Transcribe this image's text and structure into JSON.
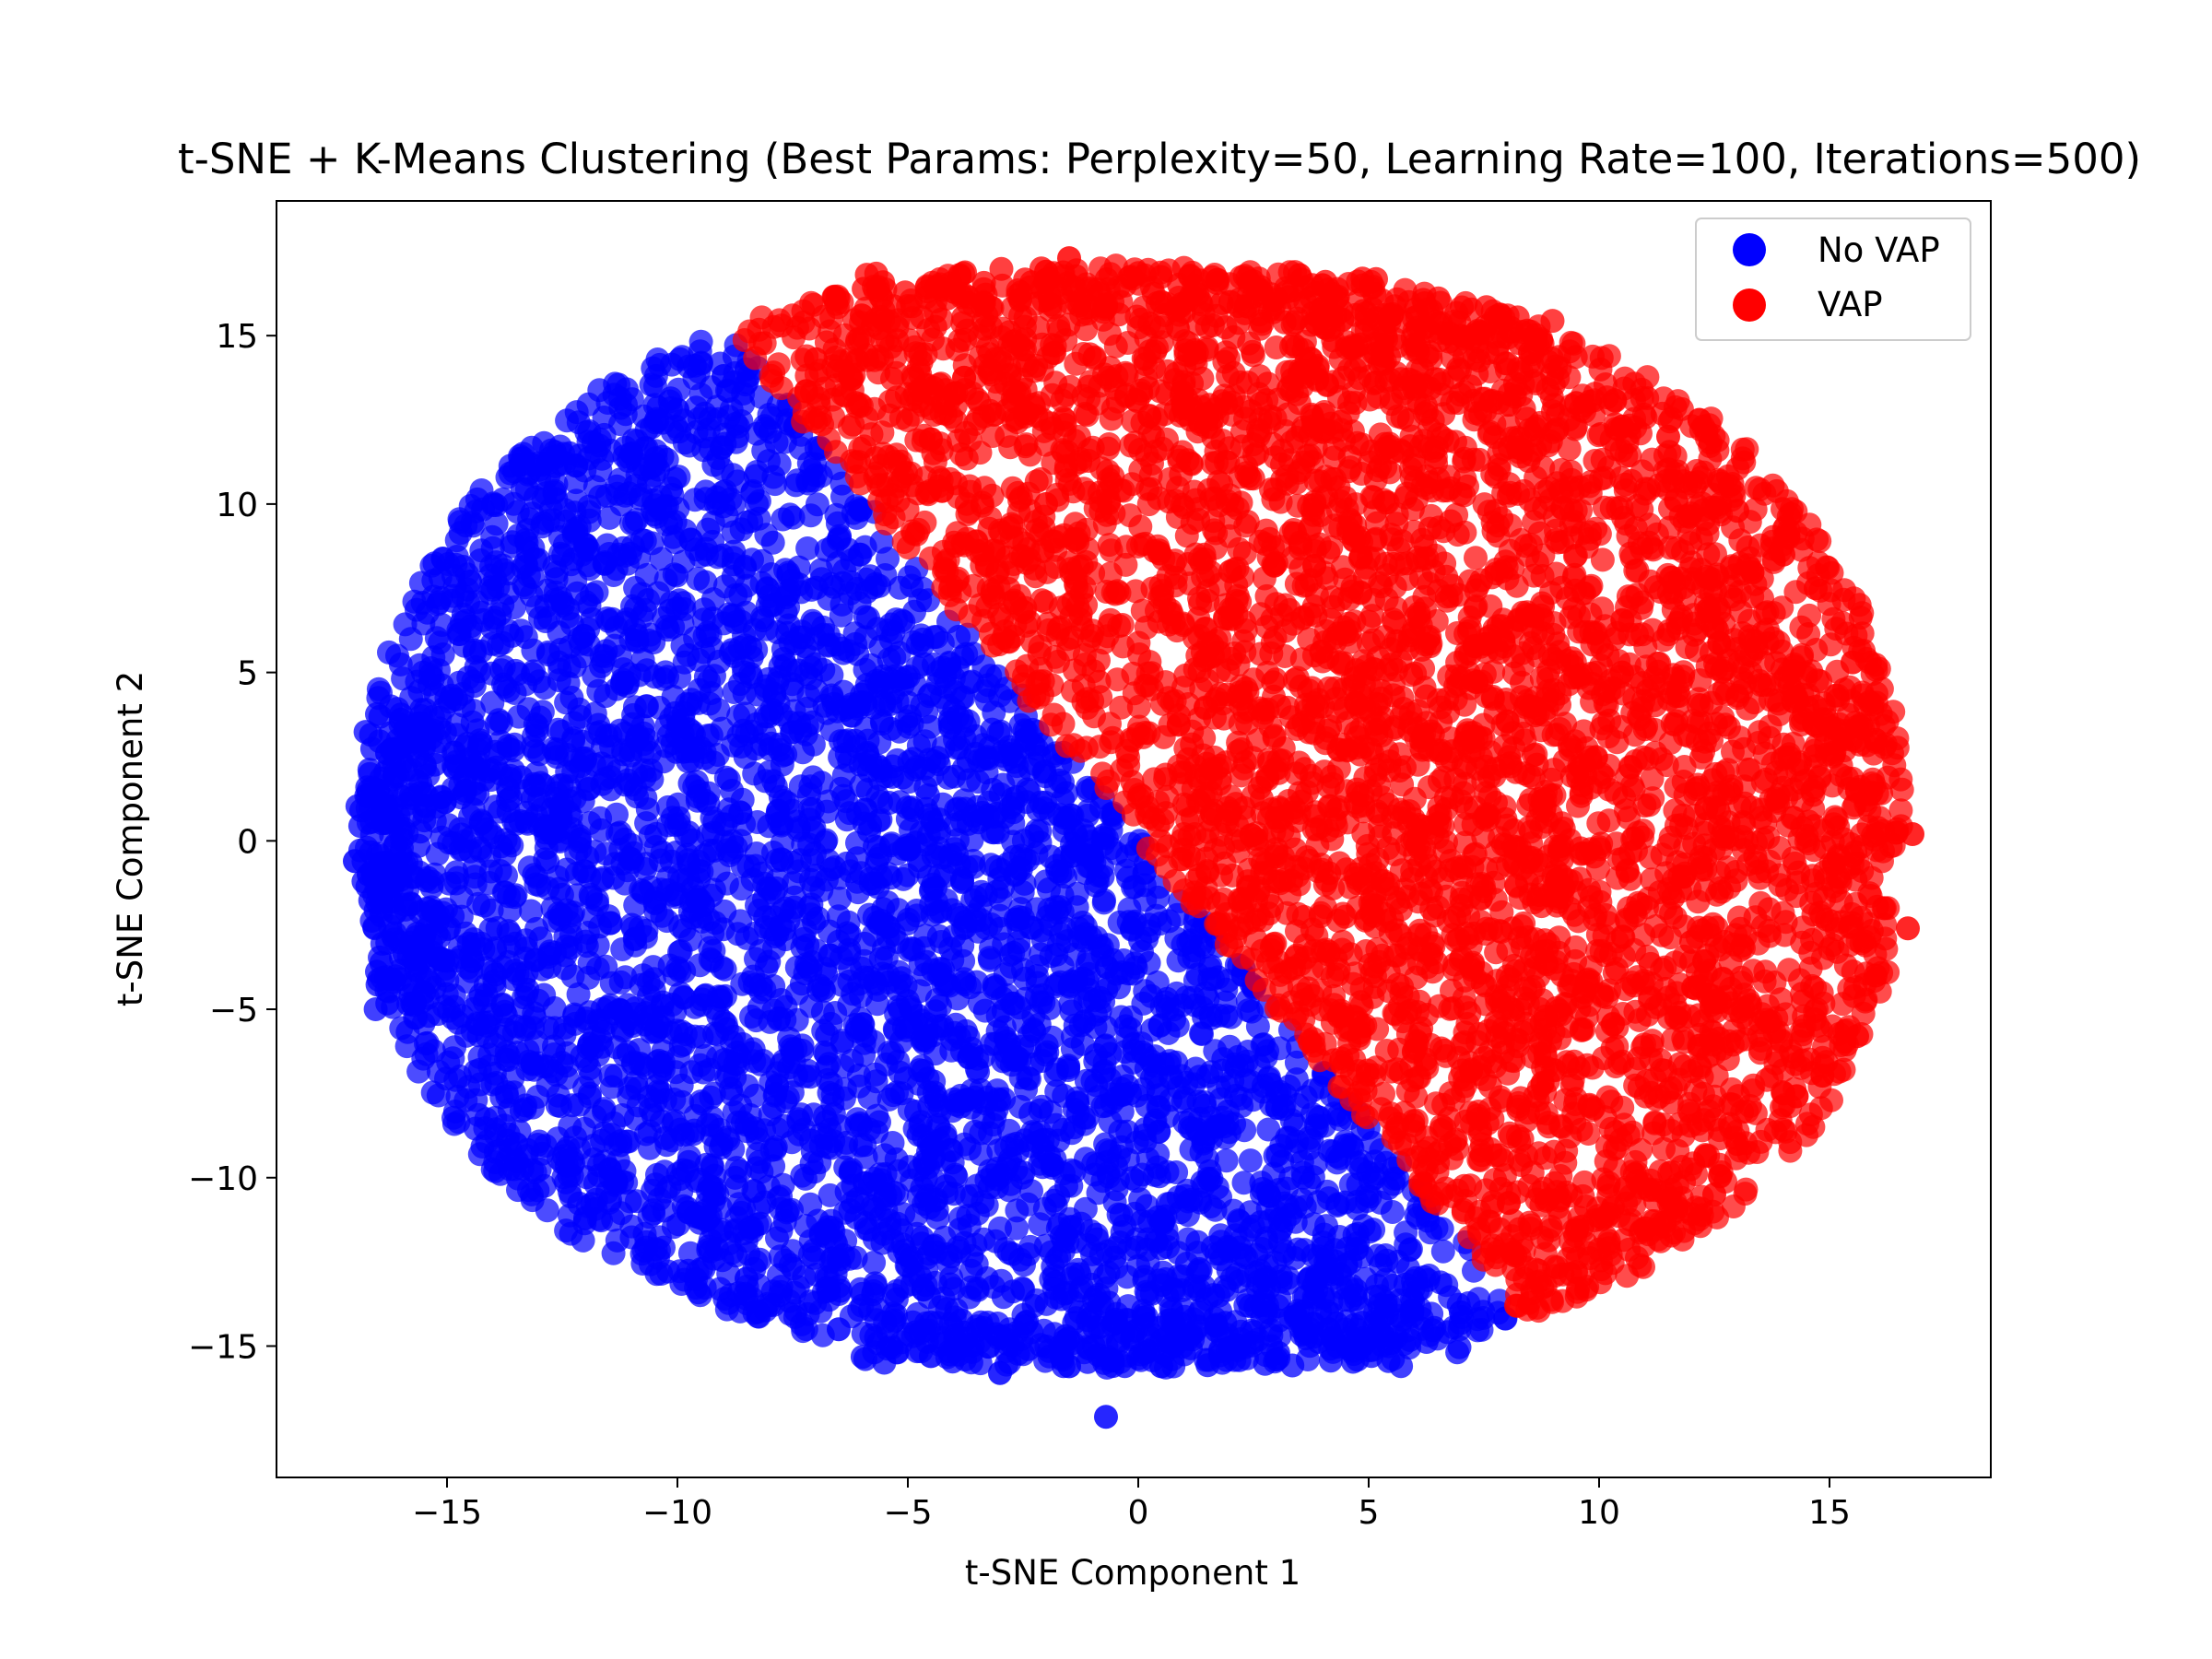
{
  "chart_data": {
    "type": "scatter",
    "title": "t-SNE + K-Means Clustering (Best Params: Perplexity=50, Learning Rate=100, Iterations=500)",
    "xlabel": "t-SNE Component 1",
    "ylabel": "t-SNE Component 2",
    "xlim": [
      -18.7,
      18.5
    ],
    "ylim": [
      -18.9,
      19.0
    ],
    "xticks": [
      -15,
      -10,
      -5,
      0,
      5,
      10,
      15
    ],
    "yticks": [
      -15,
      -10,
      -5,
      0,
      5,
      10,
      15
    ],
    "xtick_labels": [
      "−15",
      "−10",
      "−5",
      "0",
      "5",
      "10",
      "15"
    ],
    "ytick_labels": [
      "−15",
      "−10",
      "−5",
      "0",
      "5",
      "10",
      "15"
    ],
    "grid": false,
    "legend_position": "top-right",
    "series": [
      {
        "name": "No VAP",
        "color": "#0000ff",
        "region_note": "dense cloud left of boundary from (-8.2, 14) to (8.2, -13.8)",
        "sample_points": [
          [
            -17.0,
            -0.6
          ],
          [
            -16.7,
            -1.0
          ],
          [
            -16.5,
            1.5
          ],
          [
            -16.3,
            2.6
          ],
          [
            -16.0,
            3.6
          ],
          [
            -16.2,
            -4.1
          ],
          [
            -15.5,
            -4.5
          ],
          [
            -14.5,
            7.7
          ],
          [
            -14.8,
            4.2
          ],
          [
            -13.5,
            -9.0
          ],
          [
            -12.0,
            8.8
          ],
          [
            -12.0,
            -11.2
          ],
          [
            -11.0,
            11.5
          ],
          [
            -10.0,
            12.8
          ],
          [
            -9.0,
            13.8
          ],
          [
            -8.5,
            14.0
          ],
          [
            -8.5,
            -13.0
          ],
          [
            -6.5,
            -14.5
          ],
          [
            -4.5,
            -15.3
          ],
          [
            -3.0,
            -15.8
          ],
          [
            -1.5,
            -15.6
          ],
          [
            0.5,
            -15.6
          ],
          [
            3.0,
            -15.4
          ],
          [
            5.0,
            -14.8
          ],
          [
            7.0,
            -14.0
          ],
          [
            -0.7,
            -17.1
          ]
        ]
      },
      {
        "name": "VAP",
        "color": "#ff0000",
        "region_note": "dense cloud right of boundary",
        "sample_points": [
          [
            -7.0,
            14.3
          ],
          [
            -6.0,
            15.6
          ],
          [
            -4.0,
            16.3
          ],
          [
            -2.0,
            16.9
          ],
          [
            -1.5,
            17.3
          ],
          [
            0.5,
            16.0
          ],
          [
            2.0,
            16.0
          ],
          [
            3.5,
            16.8
          ],
          [
            4.0,
            16.5
          ],
          [
            5.5,
            15.6
          ],
          [
            7.0,
            15.0
          ],
          [
            8.5,
            14.5
          ],
          [
            9.5,
            13.0
          ],
          [
            10.5,
            12.3
          ],
          [
            11.5,
            12.0
          ],
          [
            13.0,
            9.8
          ],
          [
            14.0,
            8.5
          ],
          [
            14.7,
            7.5
          ],
          [
            15.5,
            5.3
          ],
          [
            16.0,
            3.0
          ],
          [
            16.8,
            0.2
          ],
          [
            16.7,
            -2.6
          ],
          [
            16.0,
            -4.0
          ],
          [
            15.6,
            -5.8
          ],
          [
            14.0,
            -7.5
          ],
          [
            13.0,
            -9.0
          ],
          [
            12.5,
            -10.5
          ],
          [
            11.0,
            -11.5
          ],
          [
            9.5,
            -12.8
          ],
          [
            8.2,
            -13.8
          ],
          [
            10.5,
            5.0
          ],
          [
            6.0,
            0.0
          ],
          [
            12.0,
            -3.0
          ],
          [
            2.0,
            8.0
          ],
          [
            -2.0,
            10.0
          ]
        ]
      }
    ]
  }
}
